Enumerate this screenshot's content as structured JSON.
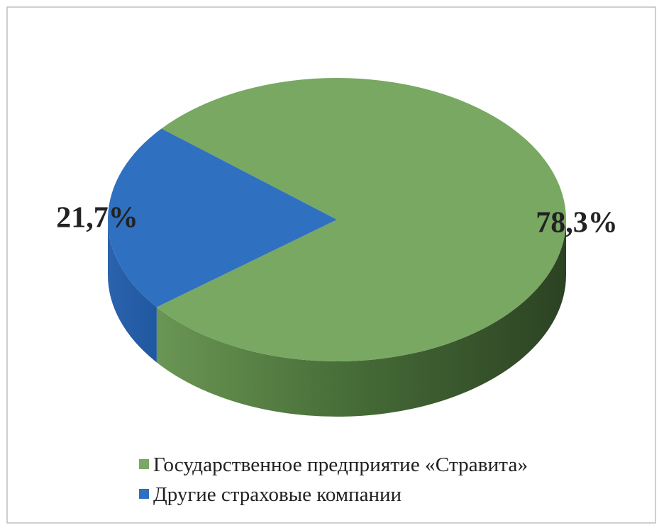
{
  "chart_data": {
    "type": "pie3d",
    "categories": [
      "Государственное предприятие «Стравита»",
      "Другие страховые компании"
    ],
    "values": [
      78.3,
      21.7
    ],
    "value_labels": [
      "78,3%",
      "21,7%"
    ],
    "colors": [
      "#78a862",
      "#3070c0"
    ]
  }
}
